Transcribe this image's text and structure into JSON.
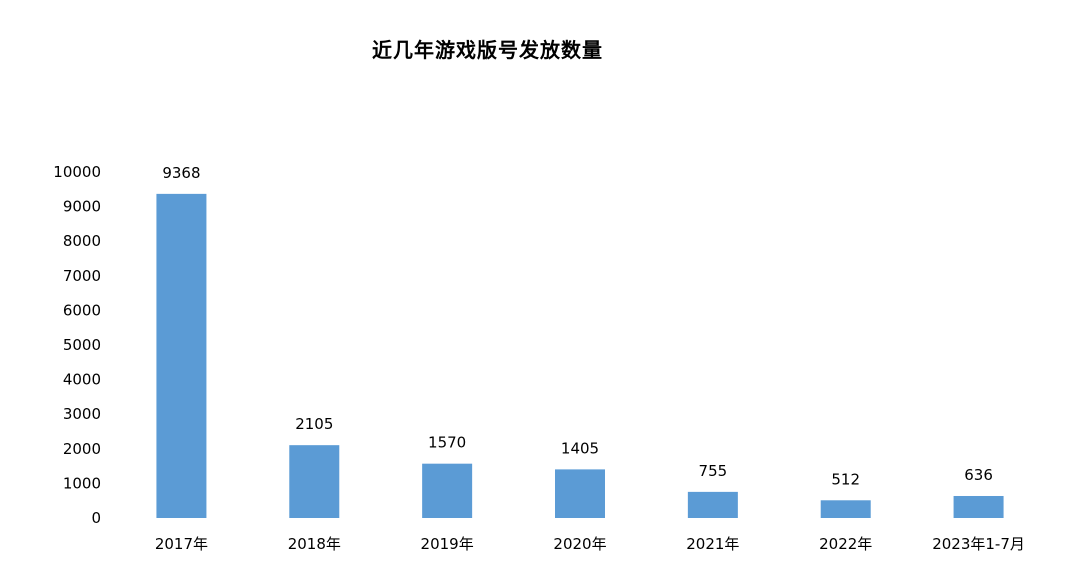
{
  "chart_data": {
    "type": "bar",
    "title": "近几年游戏版号发放数量",
    "categories": [
      "2017年",
      "2018年",
      "2019年",
      "2020年",
      "2021年",
      "2022年",
      "2023年1-7月"
    ],
    "values": [
      9368,
      2105,
      1570,
      1405,
      755,
      512,
      636
    ],
    "value_labels": [
      "9368",
      "2105",
      "1570",
      "1405",
      "755",
      "512",
      "636"
    ],
    "ylim": [
      0,
      10000
    ],
    "yticks": [
      "0",
      "1000",
      "2000",
      "3000",
      "4000",
      "5000",
      "6000",
      "7000",
      "8000",
      "9000",
      "10000"
    ],
    "xlabel": "",
    "ylabel": "",
    "bar_color": "#5b9bd5",
    "grid": false,
    "legend": false
  }
}
